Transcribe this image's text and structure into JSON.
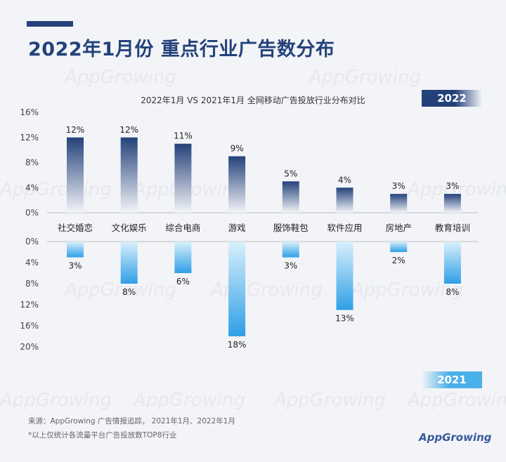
{
  "title": "2022年1月份 重点行业广告数分布",
  "subtitle": "2022年1月 VS 2021年1月 全网移动广告投放行业分布对比",
  "year_top": "2022",
  "year_bottom": "2021",
  "footer": {
    "source": "来源：AppGrowing  广告情报追踪，  2021年1月、2022年1月",
    "note": "*以上仅统计各流量平台广告投放数TOP8行业"
  },
  "watermark_text": "AppGrowing",
  "brand": {
    "app": "App",
    "growing": "Growing"
  },
  "colors": {
    "top_bar_dark": "#24427a",
    "top_bar_light": "#f3f4f8",
    "bottom_bar_dark": "#2f9fe6",
    "bottom_bar_light": "#d9f0fc",
    "title": "#24427a"
  },
  "chart_data": {
    "type": "bar",
    "categories": [
      "社交婚恋",
      "文化娱乐",
      "综合电商",
      "游戏",
      "服饰鞋包",
      "软件应用",
      "房地产",
      "教育培训"
    ],
    "series": [
      {
        "name": "2022",
        "values": [
          12,
          12,
          11,
          9,
          5,
          4,
          3,
          3
        ],
        "labels": [
          "12%",
          "12%",
          "11%",
          "9%",
          "5%",
          "4%",
          "3%",
          "3%"
        ],
        "axis_ticks": [
          "16%",
          "12%",
          "8%",
          "4%",
          "0%"
        ],
        "tick_values": [
          16,
          12,
          8,
          4,
          0
        ],
        "ylim": [
          0,
          16
        ]
      },
      {
        "name": "2021",
        "values": [
          3,
          8,
          6,
          18,
          3,
          13,
          2,
          8
        ],
        "labels": [
          "3%",
          "8%",
          "6%",
          "18%",
          "3%",
          "13%",
          "2%",
          "8%"
        ],
        "axis_ticks": [
          "0%",
          "4%",
          "8%",
          "12%",
          "16%",
          "20%"
        ],
        "tick_values": [
          0,
          4,
          8,
          12,
          16,
          20
        ],
        "ylim": [
          0,
          20
        ]
      }
    ]
  }
}
